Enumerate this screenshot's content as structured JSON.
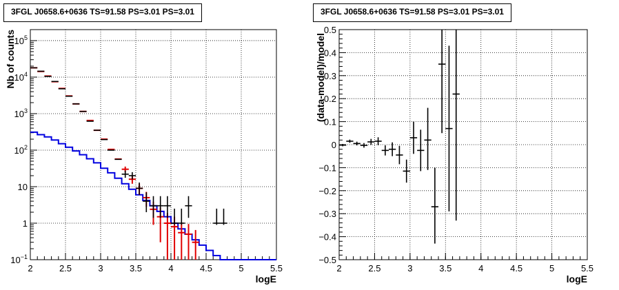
{
  "chart_data": [
    {
      "type": "step-histogram",
      "title": "3FGL J0658.6+0636 TS=91.58 PS=3.01 PS=3.01",
      "xlabel": "logE",
      "ylabel": "Nb of counts",
      "xlim": [
        2,
        5.5
      ],
      "ylim": [
        0.1,
        200000
      ],
      "yscale": "log",
      "grid": true,
      "xticks": [
        "2",
        "2.5",
        "3",
        "3.5",
        "4",
        "4.5",
        "5",
        "5.5"
      ],
      "yticks": [
        "10^{-1}",
        "1",
        "10",
        "10^{2}",
        "10^{3}",
        "10^{4}",
        "10^{5}"
      ],
      "colors": {
        "data": "#000000",
        "model": "#e00000",
        "background": "#0000e0"
      },
      "x": [
        2.05,
        2.15,
        2.25,
        2.35,
        2.45,
        2.55,
        2.65,
        2.75,
        2.85,
        2.95,
        3.05,
        3.15,
        3.25,
        3.35,
        3.45,
        3.55,
        3.65,
        3.75,
        3.85,
        3.95,
        4.05,
        4.15,
        4.25,
        4.35,
        4.45,
        4.55,
        4.65,
        4.75,
        4.85,
        4.95,
        5.05,
        5.15,
        5.25,
        5.35,
        5.45
      ],
      "series": [
        {
          "values": [
            18000,
            14500,
            10500,
            7600,
            4800,
            3000,
            1850,
            1150,
            620,
            350,
            195,
            100,
            56,
            22,
            20,
            9,
            4,
            3,
            3,
            3,
            1,
            1,
            3,
            0,
            0,
            0,
            1,
            1,
            0,
            0,
            0,
            0,
            0,
            0,
            0
          ],
          "yerr_low": [
            0.1,
            0.1,
            0.1,
            0.1,
            0.1,
            0.1,
            0.1,
            0.1,
            0.1,
            0.1,
            0.1,
            0.1,
            0.1,
            4.5,
            4.2,
            3,
            2,
            1.6,
            1.6,
            1.6,
            0.1,
            0.1,
            1.6,
            0,
            0,
            0,
            0.1,
            0.1,
            0,
            0,
            0,
            0,
            0,
            0,
            0
          ],
          "yerr_high": [
            0.1,
            0.1,
            0.1,
            0.1,
            0.1,
            0.1,
            0.1,
            0.1,
            0.1,
            0.1,
            0.1,
            0.1,
            0.1,
            5.5,
            5,
            4,
            3,
            2.5,
            2.5,
            2.5,
            1.5,
            1.5,
            2.5,
            0,
            0,
            0,
            1.5,
            1.5,
            0,
            0,
            0,
            0,
            0,
            0,
            0
          ]
        },
        {
          "values": [
            18000,
            14300,
            10700,
            7500,
            4900,
            3050,
            1850,
            1150,
            650,
            350,
            200,
            105,
            57,
            30,
            16,
            9,
            5,
            2.4,
            1.5,
            1,
            0.8,
            0.55,
            0.5,
            0.3,
            0,
            0,
            0,
            0,
            0,
            0,
            0,
            0,
            0,
            0,
            0
          ],
          "yerr_low": [
            0,
            0,
            0,
            0,
            0,
            0,
            0,
            0,
            0,
            0,
            0,
            0,
            0,
            5.5,
            4,
            3,
            2.2,
            1.5,
            1.2,
            0.9,
            0.7,
            0.5,
            0.45,
            0.25,
            0,
            0,
            0,
            0,
            0,
            0,
            0,
            0,
            0,
            0,
            0
          ],
          "yerr_high": [
            0,
            0,
            0,
            0,
            0,
            0,
            0,
            0,
            0,
            0,
            0,
            0,
            0,
            5.5,
            4,
            3,
            2.2,
            1.5,
            1.2,
            0.9,
            0.7,
            0.5,
            0.45,
            0.35,
            0,
            0,
            0,
            0,
            0,
            0,
            0,
            0,
            0,
            0,
            0
          ]
        },
        {
          "values": [
            310,
            265,
            230,
            190,
            150,
            120,
            95,
            75,
            58,
            45,
            32,
            24,
            17,
            12,
            8.5,
            6,
            4.2,
            3,
            2.1,
            1.5,
            1,
            0.7,
            0.5,
            0.35,
            0.25,
            0.18,
            0.13,
            0.1,
            0.1,
            0.1,
            0.1,
            0.1,
            0.1,
            0.1,
            0.1
          ],
          "step": true
        }
      ]
    },
    {
      "type": "scatter-errorbar",
      "title": "3FGL J0658.6+0636 TS=91.58 PS=3.01 PS=3.01",
      "xlabel": "logE",
      "ylabel": "(data-model)/model",
      "xlim": [
        2,
        5.5
      ],
      "ylim": [
        -0.5,
        0.5
      ],
      "grid": true,
      "xticks": [
        "2",
        "2.5",
        "3",
        "3.5",
        "4",
        "4.5",
        "5",
        "5.5"
      ],
      "yticks": [
        "-0.5",
        "-0.4",
        "-0.3",
        "-0.2",
        "-0.1",
        "0",
        "0.1",
        "0.2",
        "0.3",
        "0.4",
        "0.5"
      ],
      "x": [
        2.05,
        2.15,
        2.25,
        2.35,
        2.45,
        2.55,
        2.65,
        2.75,
        2.85,
        2.95,
        3.05,
        3.15,
        3.25,
        3.35,
        3.45,
        3.55,
        3.65
      ],
      "y": [
        -0.002,
        0.015,
        0.005,
        -0.003,
        0.012,
        0.015,
        -0.025,
        -0.02,
        -0.045,
        -0.115,
        0.03,
        -0.025,
        0.02,
        -0.27,
        0.35,
        0.07,
        0.22
      ],
      "yerr_low": [
        0.005,
        0.007,
        0.008,
        0.01,
        0.013,
        0.017,
        0.022,
        0.03,
        0.04,
        0.05,
        0.07,
        0.09,
        0.13,
        0.16,
        0.3,
        0.36,
        0.55
      ],
      "yerr_high": [
        0.005,
        0.007,
        0.008,
        0.01,
        0.013,
        0.017,
        0.022,
        0.03,
        0.04,
        0.05,
        0.07,
        0.09,
        0.14,
        0.17,
        0.35,
        0.36,
        0.55
      ]
    }
  ]
}
